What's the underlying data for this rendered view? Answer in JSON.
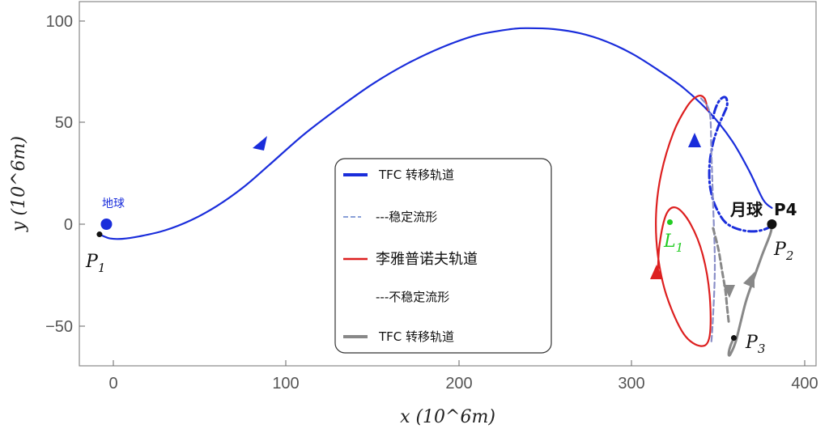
{
  "chart_data": {
    "type": "line",
    "xlabel": "x (10^6m)",
    "ylabel": "y (10^6m)",
    "xlim": [
      -20,
      410
    ],
    "ylim": [
      -70,
      105
    ],
    "x_ticks": [
      "0",
      "100",
      "200",
      "300",
      "400"
    ],
    "y_ticks": [
      "100",
      "50",
      "0",
      "−50"
    ],
    "x_tick_values": [
      0,
      100,
      200,
      300,
      400
    ],
    "y_tick_values": [
      100,
      50,
      0,
      -50
    ],
    "grid": false,
    "legend_position": "center",
    "legend": [
      {
        "label": "TFC 转移轨道",
        "color": "#1a2ddb",
        "style": "solid-thick"
      },
      {
        "label": "---稳定流形",
        "color": "#8aa0d8",
        "style": "dashed"
      },
      {
        "label": "李雅普诺夫轨道",
        "color": "#dd1f1f",
        "style": "solid"
      },
      {
        "label": "---不稳定流形",
        "color": "#cccccc",
        "style": "none"
      },
      {
        "label": "TFC 转移轨道",
        "color": "#888888",
        "style": "solid-thick"
      }
    ],
    "annotations": {
      "earth": "地球",
      "moon": "月球",
      "p4": "P4",
      "p1": "P",
      "p1_sub": "1",
      "p2": "P",
      "p2_sub": "2",
      "p3": "P",
      "p3_sub": "3",
      "l1": "L",
      "l1_sub": "1"
    },
    "points": {
      "earth": [
        -4,
        0
      ],
      "moon": [
        381,
        0
      ],
      "L1": [
        322,
        1
      ],
      "P1": [
        -8,
        -5
      ],
      "P2": [
        381,
        -1
      ],
      "P3": [
        359,
        -56
      ]
    },
    "series": [
      {
        "color": "#1a2ddb",
        "style": "solid",
        "x": [
          -8,
          -2,
          5,
          15,
          30,
          45,
          60,
          75,
          90,
          110,
          130,
          150,
          170,
          190,
          210,
          230,
          240,
          255,
          270,
          285,
          300,
          315,
          330,
          345,
          358,
          368,
          376,
          381
        ],
        "y": [
          -5,
          -7,
          -7.2,
          -6,
          -3,
          2,
          9,
          18,
          29,
          44,
          57,
          69,
          79,
          87,
          93,
          96,
          96.5,
          96,
          94,
          90,
          84,
          76,
          67,
          55,
          41,
          26,
          12,
          8
        ]
      },
      {
        "color": "#1a2ddb",
        "style": "dashdot",
        "x": [
          381,
          375,
          368,
          360,
          354,
          350,
          347,
          345,
          345,
          347,
          350,
          353,
          355,
          355,
          354,
          352,
          350,
          348,
          347
        ],
        "y": [
          -1,
          -3,
          -3.5,
          -2,
          1,
          6,
          12,
          20,
          30,
          40,
          48,
          54,
          58,
          61,
          62.5,
          62,
          60,
          56,
          52
        ]
      },
      {
        "color": "#dd1f1f",
        "style": "solid",
        "x": [
          344,
          342,
          338,
          332,
          324,
          317,
          314,
          315,
          320,
          330,
          340,
          345,
          345,
          341,
          334,
          326,
          320,
          316,
          315
        ],
        "y": [
          56,
          62,
          63,
          58,
          45,
          25,
          5,
          -15,
          -35,
          -54,
          -60,
          -55,
          -35,
          -15,
          0,
          8,
          5,
          -10,
          -25
        ]
      },
      {
        "color": "#8a8fc8",
        "style": "dashed",
        "x": [
          340,
          345,
          346,
          347,
          348,
          347,
          346
        ],
        "y": [
          62,
          55,
          35,
          10,
          -20,
          -45,
          -58
        ]
      },
      {
        "color": "#888888",
        "style": "dashed",
        "x": [
          347,
          350,
          352,
          354,
          355,
          356
        ],
        "y": [
          -2,
          -12,
          -22,
          -32,
          -40,
          -48
        ]
      },
      {
        "color": "#888888",
        "style": "solid",
        "x": [
          359,
          357,
          356,
          357,
          360,
          363,
          366,
          370,
          375,
          380,
          381
        ],
        "y": [
          -56,
          -60,
          -64,
          -64,
          -58,
          -48,
          -38,
          -28,
          -16,
          -5,
          -1
        ]
      }
    ]
  }
}
